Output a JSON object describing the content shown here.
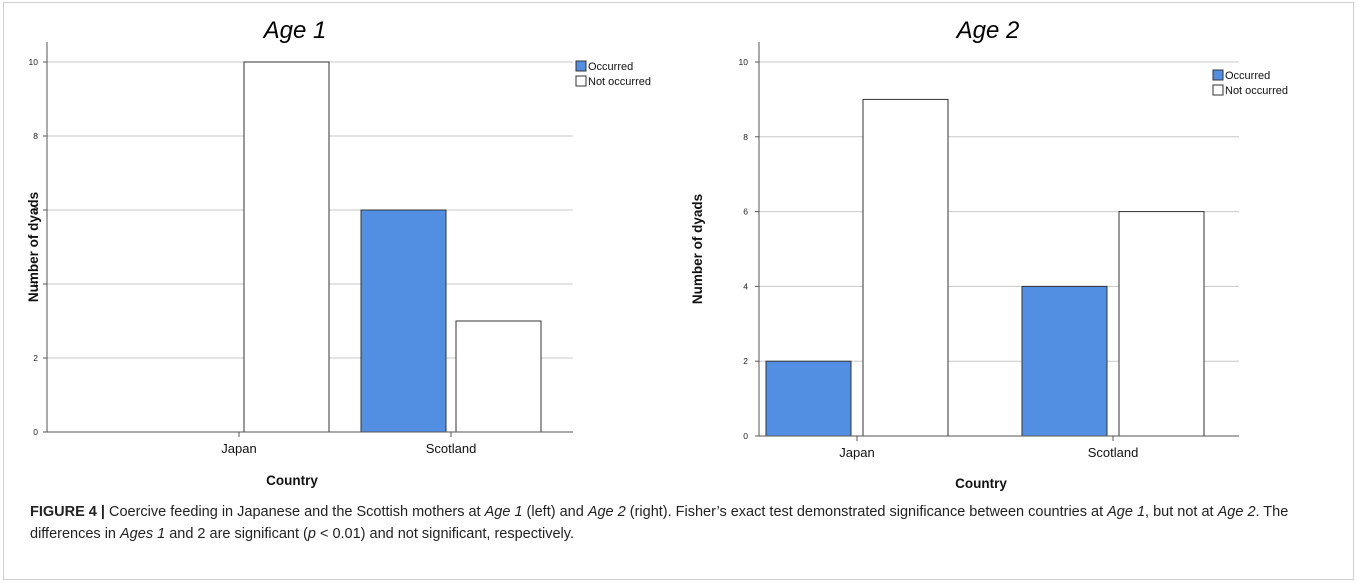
{
  "chart_data": [
    {
      "type": "bar",
      "title": "Age 1",
      "xlabel": "Country",
      "ylabel": "Number of dyads",
      "categories": [
        "Japan",
        "Scotland"
      ],
      "series": [
        {
          "name": "Occurred",
          "values": [
            0,
            6
          ],
          "color": "#528fe3"
        },
        {
          "name": "Not occurred",
          "values": [
            10,
            3
          ],
          "color": "#ffffff"
        }
      ],
      "ylim": [
        0,
        10
      ],
      "yticks": [
        "0",
        "2",
        "4",
        "6",
        "8",
        "10"
      ],
      "grid": true,
      "legend": "top-right"
    },
    {
      "type": "bar",
      "title": "Age 2",
      "xlabel": "Country",
      "ylabel": "Number of dyads",
      "categories": [
        "Japan",
        "Scotland"
      ],
      "series": [
        {
          "name": "Occurred",
          "values": [
            2,
            4
          ],
          "color": "#528fe3"
        },
        {
          "name": "Not occurred",
          "values": [
            9,
            6
          ],
          "color": "#ffffff"
        }
      ],
      "ylim": [
        0,
        10
      ],
      "yticks": [
        "0",
        "2",
        "4",
        "6",
        "8",
        "10"
      ],
      "grid": true,
      "legend": "top-right"
    }
  ],
  "caption": {
    "label": "FIGURE 4 |",
    "t1": " Coercive feeding in Japanese and the Scottish mothers at ",
    "age1a": "Age 1",
    "t2": " (left) and ",
    "age2a": "Age 2",
    "t3": " (right). Fisher’s exact test demonstrated significance between countries at ",
    "age1b": "Age 1",
    "t4": ", but not at ",
    "age2b": "Age 2",
    "t5": ". The differences in ",
    "ages": "Ages 1",
    "t6": " and 2 are significant (",
    "p": "p",
    "t7": " < 0.01) and not significant, respectively."
  }
}
